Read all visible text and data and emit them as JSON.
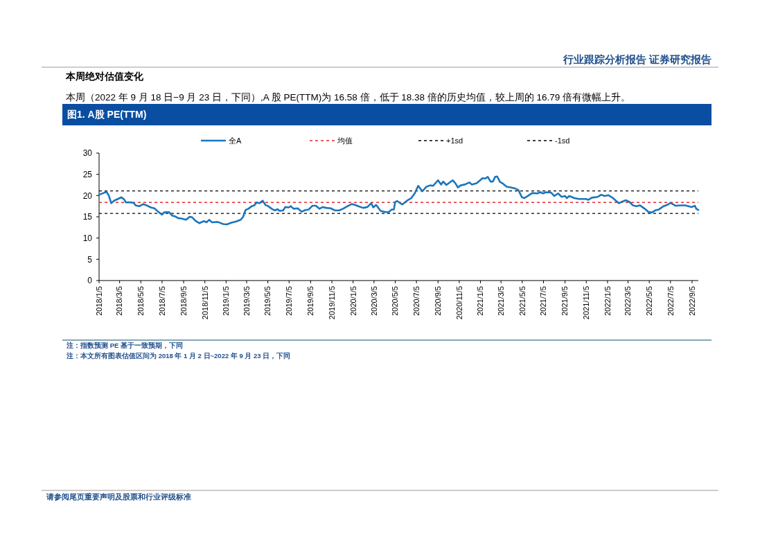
{
  "chart_data": {
    "type": "line",
    "title": "图1. A股 PE(TTM)",
    "annotations": [
      "行业跟踪分析报告  证券研究报告",
      "本周绝对估值变化",
      "本周（2022 年 9 月 18 日−9 月 23 日，下同）,A 股 PE(TTM)为 16.58 倍，低于 18.38 倍的历史均值，较上周的 16.79 倍有微幅上升。",
      "注：指数预测 PE 基于一致预期，下同",
      "注：本文所有图表估值区间为 2018 年 1 月 2 日~2022 年 9 月 23 日，下同",
      "请参阅尾页重要声明及股票和行业评级标准"
    ],
    "x": [
      "2018-01-05",
      "2018-01-18",
      "2018-01-26",
      "2018-02-02",
      "2018-02-09",
      "2018-02-17",
      "2018-02-28",
      "2018-03-10",
      "2018-03-18",
      "2018-03-23",
      "2018-04-04",
      "2018-04-14",
      "2018-04-20",
      "2018-05-01",
      "2018-05-12",
      "2018-05-24",
      "2018-06-03",
      "2018-06-13",
      "2018-06-21",
      "2018-07-05",
      "2018-07-12",
      "2018-07-25",
      "2018-08-03",
      "2018-08-12",
      "2018-08-20",
      "2018-08-30",
      "2018-09-12",
      "2018-09-22",
      "2018-09-29",
      "2018-10-10",
      "2018-10-20",
      "2018-11-02",
      "2018-11-10",
      "2018-11-17",
      "2018-11-26",
      "2018-12-12",
      "2018-12-28",
      "2019-01-07",
      "2019-01-20",
      "2019-02-03",
      "2019-02-16",
      "2019-02-23",
      "2019-03-02",
      "2019-03-10",
      "2019-03-20",
      "2019-03-27",
      "2019-04-03",
      "2019-04-11",
      "2019-04-20",
      "2019-04-28",
      "2019-05-06",
      "2019-05-16",
      "2019-05-25",
      "2019-06-02",
      "2019-06-08",
      "2019-06-18",
      "2019-06-24",
      "2019-07-04",
      "2019-07-10",
      "2019-07-18",
      "2019-07-30",
      "2019-08-10",
      "2019-08-21",
      "2019-08-30",
      "2019-09-10",
      "2019-09-20",
      "2019-09-30",
      "2019-10-10",
      "2019-10-20",
      "2019-11-02",
      "2019-11-14",
      "2019-11-26",
      "2019-12-07",
      "2019-12-20",
      "2020-01-01",
      "2020-01-10",
      "2020-01-20",
      "2020-02-03",
      "2020-02-15",
      "2020-02-26",
      "2020-03-03",
      "2020-03-11",
      "2020-03-24",
      "2020-04-08",
      "2020-04-16",
      "2020-04-25",
      "2020-05-01",
      "2020-05-05",
      "2020-05-11",
      "2020-05-25",
      "2020-06-08",
      "2020-06-20",
      "2020-06-30",
      "2020-07-10",
      "2020-07-22",
      "2020-08-03",
      "2020-08-13",
      "2020-08-22",
      "2020-09-05",
      "2020-09-14",
      "2020-09-20",
      "2020-09-29",
      "2020-10-17",
      "2020-10-25",
      "2020-11-01",
      "2020-11-09",
      "2020-11-21",
      "2020-12-04",
      "2020-12-11",
      "2020-12-25",
      "2021-01-11",
      "2021-01-19",
      "2021-01-26",
      "2021-02-03",
      "2021-02-10",
      "2021-02-16",
      "2021-02-22",
      "2021-03-02",
      "2021-03-09",
      "2021-03-21",
      "2021-04-04",
      "2021-04-14",
      "2021-04-24",
      "2021-05-04",
      "2021-05-11",
      "2021-05-21",
      "2021-06-03",
      "2021-06-17",
      "2021-06-27",
      "2021-07-03",
      "2021-07-13",
      "2021-07-27",
      "2021-08-05",
      "2021-08-16",
      "2021-08-26",
      "2021-09-05",
      "2021-09-10",
      "2021-09-17",
      "2021-10-02",
      "2021-10-15",
      "2021-11-04",
      "2021-11-11",
      "2021-11-21",
      "2021-12-08",
      "2021-12-18",
      "2021-12-28",
      "2022-01-07",
      "2022-01-21",
      "2022-01-29",
      "2022-02-07",
      "2022-02-17",
      "2022-02-27",
      "2022-03-09",
      "2022-03-19",
      "2022-03-29",
      "2022-04-08",
      "2022-04-22",
      "2022-05-02",
      "2022-05-12",
      "2022-05-22",
      "2022-06-01",
      "2022-06-15",
      "2022-06-28",
      "2022-07-05",
      "2022-07-20",
      "2022-08-03",
      "2022-08-16",
      "2022-08-26",
      "2022-09-04",
      "2022-09-13",
      "2022-09-17",
      "2022-09-23"
    ],
    "series": [
      {
        "name": "全A",
        "color": "#1b75bc",
        "values": [
          20.2,
          20.6,
          20.9,
          20.0,
          18.2,
          18.8,
          19.2,
          19.6,
          19.1,
          18.4,
          18.4,
          18.3,
          17.7,
          17.5,
          18.0,
          17.6,
          17.2,
          17.0,
          16.4,
          15.5,
          16.1,
          16.1,
          15.3,
          15.1,
          14.7,
          14.6,
          14.3,
          15.0,
          14.9,
          14.0,
          13.5,
          14.0,
          13.7,
          14.3,
          13.7,
          13.8,
          13.3,
          13.2,
          13.6,
          13.9,
          14.3,
          15.0,
          16.6,
          16.9,
          17.5,
          17.7,
          18.4,
          18.2,
          18.8,
          17.8,
          17.5,
          16.9,
          16.5,
          16.8,
          16.4,
          16.5,
          17.3,
          17.2,
          17.5,
          16.9,
          17.0,
          16.2,
          16.6,
          16.7,
          17.6,
          17.6,
          16.9,
          17.3,
          17.1,
          17.0,
          16.5,
          16.5,
          16.9,
          17.5,
          18.0,
          17.8,
          17.5,
          17.1,
          17.3,
          18.2,
          17.2,
          17.8,
          16.4,
          16.1,
          16.1,
          16.7,
          16.7,
          18.5,
          18.7,
          17.9,
          18.8,
          19.4,
          20.5,
          22.3,
          21.0,
          22.1,
          22.4,
          22.3,
          23.6,
          22.6,
          23.3,
          22.5,
          23.6,
          22.9,
          21.9,
          22.4,
          22.6,
          23.1,
          22.6,
          22.9,
          24.1,
          24.0,
          24.4,
          23.3,
          23.3,
          24.4,
          24.5,
          23.2,
          22.9,
          22.1,
          21.9,
          21.7,
          21.3,
          19.6,
          19.4,
          19.9,
          20.6,
          20.5,
          20.8,
          20.5,
          20.8,
          20.7,
          19.9,
          20.5,
          19.7,
          19.9,
          19.4,
          19.9,
          19.4,
          19.2,
          19.2,
          19.0,
          19.5,
          19.7,
          20.2,
          19.9,
          20.1,
          19.4,
          18.8,
          18.2,
          18.6,
          18.9,
          18.5,
          17.7,
          17.5,
          17.7,
          16.9,
          16.2,
          16.0,
          16.5,
          16.7,
          17.5,
          17.9,
          18.3,
          17.6,
          17.7,
          17.7,
          17.5,
          17.3,
          17.6,
          16.9,
          16.6
        ]
      }
    ],
    "ref_lines": [
      {
        "axis": "y",
        "value": 18.38,
        "label": "均值",
        "color": "#e8262b",
        "line_style": "dashed"
      },
      {
        "axis": "y",
        "value": 21.1,
        "label": "+1sd",
        "color": "#000000",
        "line_style": "dashed"
      },
      {
        "axis": "y",
        "value": 15.8,
        "label": "-1sd",
        "color": "#000000",
        "line_style": "dashed"
      }
    ],
    "xlim": [
      "2018-01-05",
      "2022-09-23"
    ],
    "xticks": [
      {
        "value": "2018-01-05",
        "label": "2018/1/5"
      },
      {
        "value": "2018-03-05",
        "label": "2018/3/5"
      },
      {
        "value": "2018-05-05",
        "label": "2018/5/5"
      },
      {
        "value": "2018-07-05",
        "label": "2018/7/5"
      },
      {
        "value": "2018-09-05",
        "label": "2018/9/5"
      },
      {
        "value": "2018-11-05",
        "label": "2018/11/5"
      },
      {
        "value": "2019-01-05",
        "label": "2019/1/5"
      },
      {
        "value": "2019-03-05",
        "label": "2019/3/5"
      },
      {
        "value": "2019-05-05",
        "label": "2019/5/5"
      },
      {
        "value": "2019-07-05",
        "label": "2019/7/5"
      },
      {
        "value": "2019-09-05",
        "label": "2019/9/5"
      },
      {
        "value": "2019-11-05",
        "label": "2019/11/5"
      },
      {
        "value": "2020-01-05",
        "label": "2020/1/5"
      },
      {
        "value": "2020-03-05",
        "label": "2020/3/5"
      },
      {
        "value": "2020-05-05",
        "label": "2020/5/5"
      },
      {
        "value": "2020-07-05",
        "label": "2020/7/5"
      },
      {
        "value": "2020-09-05",
        "label": "2020/9/5"
      },
      {
        "value": "2020-11-05",
        "label": "2020/11/5"
      },
      {
        "value": "2021-01-05",
        "label": "2021/1/5"
      },
      {
        "value": "2021-03-05",
        "label": "2021/3/5"
      },
      {
        "value": "2021-05-05",
        "label": "2021/5/5"
      },
      {
        "value": "2021-07-05",
        "label": "2021/7/5"
      },
      {
        "value": "2021-09-05",
        "label": "2021/9/5"
      },
      {
        "value": "2021-11-05",
        "label": "2021/11/5"
      },
      {
        "value": "2022-01-05",
        "label": "2022/1/5"
      },
      {
        "value": "2022-03-05",
        "label": "2022/3/5"
      },
      {
        "value": "2022-05-05",
        "label": "2022/5/5"
      },
      {
        "value": "2022-07-05",
        "label": "2022/7/5"
      },
      {
        "value": "2022-09-05",
        "label": "2022/9/5"
      }
    ],
    "ylim": [
      0,
      30
    ],
    "yticks": [
      0,
      5,
      10,
      15,
      20,
      25,
      30
    ],
    "legend": "top",
    "marker": "none",
    "line_style": "solid"
  }
}
